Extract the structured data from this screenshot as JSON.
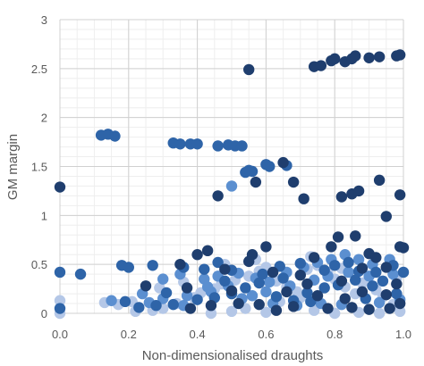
{
  "chart_data": {
    "type": "scatter",
    "title": "",
    "xlabel": "Non-dimensionalised draughts",
    "ylabel": "GM margin",
    "xlim": [
      0,
      1
    ],
    "ylim": [
      0,
      3
    ],
    "xticks": [
      0,
      0.2,
      0.4,
      0.6,
      0.8,
      1
    ],
    "xtick_labels": [
      "0.0",
      "0.2",
      "0.4",
      "0.6",
      "0.8",
      "1.0"
    ],
    "yticks": [
      0,
      0.5,
      1,
      1.5,
      2,
      2.5,
      3
    ],
    "ytick_labels": [
      "0",
      "0.5",
      "1",
      "1.5",
      "2",
      "2.5",
      "3"
    ],
    "grid": true,
    "legend": "none",
    "series": [
      {
        "color": "#1f3e6e",
        "points": [
          [
            0.0,
            1.29
          ],
          [
            0.55,
            2.49
          ],
          [
            0.74,
            2.52
          ],
          [
            0.76,
            2.53
          ],
          [
            0.79,
            2.58
          ],
          [
            0.8,
            2.6
          ],
          [
            0.83,
            2.57
          ],
          [
            0.85,
            2.6
          ],
          [
            0.86,
            2.63
          ],
          [
            0.9,
            2.61
          ],
          [
            0.93,
            2.62
          ],
          [
            0.98,
            2.63
          ],
          [
            0.99,
            2.64
          ],
          [
            0.46,
            1.2
          ],
          [
            0.57,
            1.34
          ],
          [
            0.68,
            1.34
          ],
          [
            0.71,
            1.17
          ],
          [
            0.82,
            1.19
          ],
          [
            0.85,
            1.22
          ],
          [
            0.87,
            1.25
          ],
          [
            0.93,
            1.36
          ],
          [
            0.95,
            0.99
          ],
          [
            0.99,
            1.21
          ],
          [
            0.65,
            1.54
          ],
          [
            0.4,
            0.6
          ],
          [
            0.43,
            0.64
          ],
          [
            0.56,
            0.6
          ],
          [
            0.6,
            0.68
          ],
          [
            0.74,
            0.57
          ],
          [
            0.79,
            0.68
          ],
          [
            0.81,
            0.78
          ],
          [
            0.86,
            0.79
          ],
          [
            0.9,
            0.61
          ],
          [
            0.92,
            0.57
          ],
          [
            0.99,
            0.68
          ],
          [
            1.0,
            0.67
          ],
          [
            0.35,
            0.5
          ],
          [
            0.48,
            0.45
          ],
          [
            0.55,
            0.53
          ],
          [
            0.62,
            0.42
          ],
          [
            0.7,
            0.39
          ],
          [
            0.82,
            0.33
          ],
          [
            0.88,
            0.46
          ],
          [
            0.95,
            0.47
          ],
          [
            0.98,
            0.3
          ],
          [
            0.25,
            0.28
          ],
          [
            0.37,
            0.26
          ],
          [
            0.5,
            0.23
          ],
          [
            0.58,
            0.09
          ],
          [
            0.63,
            0.03
          ],
          [
            0.68,
            0.07
          ],
          [
            0.78,
            0.05
          ],
          [
            0.85,
            0.06
          ],
          [
            0.9,
            0.04
          ],
          [
            0.96,
            0.05
          ],
          [
            0.99,
            0.1
          ],
          [
            0.75,
            0.18
          ],
          [
            0.83,
            0.15
          ],
          [
            0.95,
            0.19
          ],
          [
            0.52,
            0.1
          ],
          [
            0.38,
            0.05
          ],
          [
            0.44,
            0.08
          ],
          [
            0.72,
            0.3
          ],
          [
            0.66,
            0.22
          ],
          [
            0.88,
            0.22
          ]
        ]
      },
      {
        "color": "#2e64a8",
        "points": [
          [
            0.12,
            1.82
          ],
          [
            0.14,
            1.83
          ],
          [
            0.16,
            1.81
          ],
          [
            0.33,
            1.74
          ],
          [
            0.35,
            1.73
          ],
          [
            0.38,
            1.73
          ],
          [
            0.4,
            1.73
          ],
          [
            0.46,
            1.71
          ],
          [
            0.49,
            1.72
          ],
          [
            0.51,
            1.71
          ],
          [
            0.53,
            1.71
          ],
          [
            0.54,
            1.44
          ],
          [
            0.55,
            1.46
          ],
          [
            0.56,
            1.45
          ],
          [
            0.6,
            1.52
          ],
          [
            0.61,
            1.5
          ],
          [
            0.66,
            1.51
          ],
          [
            0.0,
            0.42
          ],
          [
            0.06,
            0.4
          ],
          [
            0.18,
            0.49
          ],
          [
            0.2,
            0.47
          ],
          [
            0.27,
            0.49
          ],
          [
            0.36,
            0.47
          ],
          [
            0.42,
            0.45
          ],
          [
            0.46,
            0.52
          ],
          [
            0.5,
            0.44
          ],
          [
            0.59,
            0.4
          ],
          [
            0.64,
            0.48
          ],
          [
            0.7,
            0.51
          ],
          [
            0.77,
            0.44
          ],
          [
            0.8,
            0.49
          ],
          [
            0.84,
            0.52
          ],
          [
            0.87,
            0.43
          ],
          [
            0.92,
            0.42
          ],
          [
            0.97,
            0.49
          ],
          [
            1.0,
            0.42
          ],
          [
            0.23,
            0.06
          ],
          [
            0.28,
            0.08
          ],
          [
            0.33,
            0.09
          ],
          [
            0.4,
            0.14
          ],
          [
            0.45,
            0.16
          ],
          [
            0.5,
            0.2
          ],
          [
            0.54,
            0.26
          ],
          [
            0.58,
            0.31
          ],
          [
            0.63,
            0.17
          ],
          [
            0.68,
            0.13
          ],
          [
            0.72,
            0.21
          ],
          [
            0.77,
            0.26
          ],
          [
            0.81,
            0.29
          ],
          [
            0.86,
            0.34
          ],
          [
            0.91,
            0.28
          ],
          [
            0.94,
            0.33
          ],
          [
            0.98,
            0.2
          ],
          [
            0.0,
            0.05
          ],
          [
            0.19,
            0.12
          ],
          [
            0.31,
            0.21
          ],
          [
            0.48,
            0.33
          ],
          [
            0.65,
            0.36
          ],
          [
            0.73,
            0.12
          ],
          [
            0.89,
            0.15
          ]
        ]
      },
      {
        "color": "#5b8fd0",
        "points": [
          [
            0.5,
            1.3
          ],
          [
            0.3,
            0.35
          ],
          [
            0.35,
            0.4
          ],
          [
            0.42,
            0.35
          ],
          [
            0.46,
            0.38
          ],
          [
            0.52,
            0.41
          ],
          [
            0.57,
            0.36
          ],
          [
            0.61,
            0.32
          ],
          [
            0.66,
            0.42
          ],
          [
            0.71,
            0.47
          ],
          [
            0.75,
            0.52
          ],
          [
            0.79,
            0.55
          ],
          [
            0.83,
            0.6
          ],
          [
            0.87,
            0.55
          ],
          [
            0.91,
            0.5
          ],
          [
            0.96,
            0.55
          ],
          [
            0.24,
            0.2
          ],
          [
            0.3,
            0.15
          ],
          [
            0.37,
            0.18
          ],
          [
            0.44,
            0.22
          ],
          [
            0.49,
            0.28
          ],
          [
            0.53,
            0.15
          ],
          [
            0.6,
            0.22
          ],
          [
            0.67,
            0.28
          ],
          [
            0.74,
            0.34
          ],
          [
            0.78,
            0.38
          ],
          [
            0.84,
            0.42
          ],
          [
            0.9,
            0.38
          ],
          [
            0.97,
            0.4
          ],
          [
            0.15,
            0.13
          ],
          [
            0.26,
            0.11
          ],
          [
            0.36,
            0.08
          ],
          [
            0.43,
            0.27
          ],
          [
            0.56,
            0.18
          ],
          [
            0.62,
            0.1
          ],
          [
            0.69,
            0.08
          ],
          [
            0.76,
            0.1
          ],
          [
            0.82,
            0.09
          ],
          [
            0.93,
            0.11
          ],
          [
            0.99,
            0.14
          ]
        ]
      },
      {
        "color": "#b4c7e7",
        "points": [
          [
            0.0,
            0.13
          ],
          [
            0.0,
            0.0
          ],
          [
            0.13,
            0.11
          ],
          [
            0.17,
            0.09
          ],
          [
            0.21,
            0.12
          ],
          [
            0.22,
            0.02
          ],
          [
            0.27,
            0.03
          ],
          [
            0.3,
            0.05
          ],
          [
            0.34,
            0.1
          ],
          [
            0.39,
            0.16
          ],
          [
            0.41,
            0.21
          ],
          [
            0.45,
            0.25
          ],
          [
            0.47,
            0.3
          ],
          [
            0.51,
            0.34
          ],
          [
            0.55,
            0.38
          ],
          [
            0.58,
            0.43
          ],
          [
            0.6,
            0.47
          ],
          [
            0.63,
            0.33
          ],
          [
            0.66,
            0.27
          ],
          [
            0.69,
            0.22
          ],
          [
            0.72,
            0.45
          ],
          [
            0.75,
            0.49
          ],
          [
            0.78,
            0.42
          ],
          [
            0.8,
            0.35
          ],
          [
            0.83,
            0.27
          ],
          [
            0.86,
            0.2
          ],
          [
            0.88,
            0.31
          ],
          [
            0.92,
            0.24
          ],
          [
            0.94,
            0.17
          ],
          [
            0.97,
            0.09
          ],
          [
            0.99,
            0.02
          ],
          [
            0.44,
            0.0
          ],
          [
            0.5,
            0.02
          ],
          [
            0.54,
            0.05
          ],
          [
            0.6,
            0.01
          ],
          [
            0.64,
            0.12
          ],
          [
            0.7,
            0.16
          ],
          [
            0.74,
            0.03
          ],
          [
            0.8,
            0.0
          ],
          [
            0.87,
            0.01
          ],
          [
            0.93,
            0.0
          ],
          [
            0.98,
            0.36
          ],
          [
            0.57,
            0.55
          ],
          [
            0.73,
            0.58
          ],
          [
            0.82,
            0.46
          ],
          [
            0.48,
            0.5
          ],
          [
            0.36,
            0.32
          ],
          [
            0.29,
            0.26
          ]
        ]
      }
    ]
  }
}
